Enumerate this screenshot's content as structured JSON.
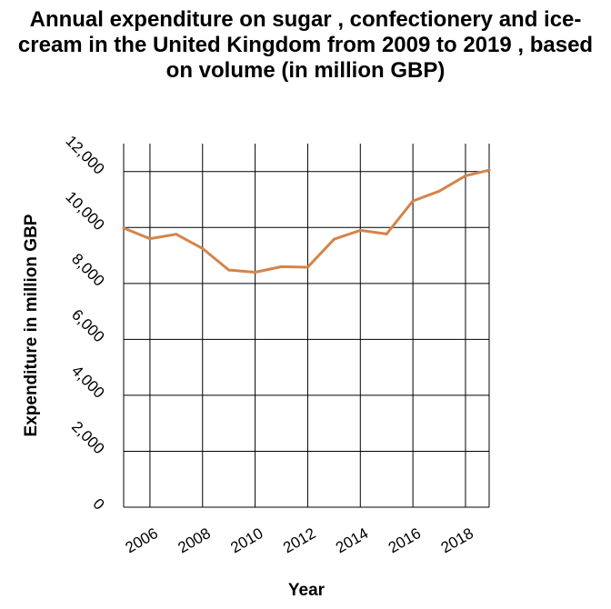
{
  "chart_data": {
    "type": "line",
    "title": "Annual expenditure on sugar , confectionery and ice-cream in the United Kingdom from 2009 to 2019 , based on volume (in million GBP)",
    "xlabel": "Year",
    "ylabel": "Expenditure in million GBP",
    "xlim": [
      2005,
      2018.9
    ],
    "ylim": [
      0,
      13000
    ],
    "x_ticks": [
      2006,
      2008,
      2010,
      2012,
      2014,
      2016,
      2018
    ],
    "y_ticks": [
      0,
      2000,
      4000,
      6000,
      8000,
      10000,
      12000
    ],
    "y_tick_labels": [
      "0",
      "2,000",
      "4,000",
      "6,000",
      "8,000",
      "10,000",
      "12,000"
    ],
    "grid": true,
    "line_color": "#d4844a",
    "series": [
      {
        "x": [
          2005,
          2006,
          2007,
          2008,
          2009,
          2010,
          2011,
          2012,
          2013,
          2014,
          2015,
          2016,
          2017,
          2018,
          2018.9
        ],
        "values": [
          9980,
          9600,
          9760,
          9250,
          8480,
          8400,
          8600,
          8580,
          9580,
          9900,
          9770,
          10950,
          11300,
          11850,
          12050
        ]
      }
    ]
  }
}
